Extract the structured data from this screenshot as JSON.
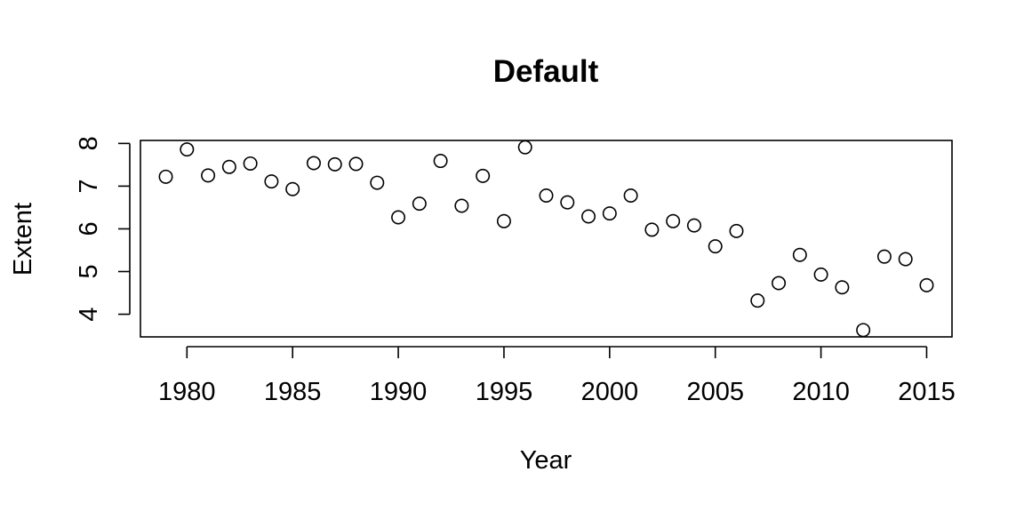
{
  "chart_data": {
    "type": "scatter",
    "title": "Default",
    "xlabel": "Year",
    "ylabel": "Extent",
    "xlim": [
      1977.8,
      2016.2
    ],
    "ylim": [
      3.47,
      8.07
    ],
    "xticks": [
      1980,
      1985,
      1990,
      1995,
      2000,
      2005,
      2010,
      2015
    ],
    "yticks": [
      4,
      5,
      6,
      7,
      8
    ],
    "grid": false,
    "points": [
      {
        "x": 1979,
        "y": 7.22
      },
      {
        "x": 1980,
        "y": 7.86
      },
      {
        "x": 1981,
        "y": 7.25
      },
      {
        "x": 1982,
        "y": 7.45
      },
      {
        "x": 1983,
        "y": 7.53
      },
      {
        "x": 1984,
        "y": 7.11
      },
      {
        "x": 1985,
        "y": 6.93
      },
      {
        "x": 1986,
        "y": 7.54
      },
      {
        "x": 1987,
        "y": 7.51
      },
      {
        "x": 1988,
        "y": 7.52
      },
      {
        "x": 1989,
        "y": 7.08
      },
      {
        "x": 1990,
        "y": 6.27
      },
      {
        "x": 1991,
        "y": 6.59
      },
      {
        "x": 1992,
        "y": 7.59
      },
      {
        "x": 1993,
        "y": 6.54
      },
      {
        "x": 1994,
        "y": 7.24
      },
      {
        "x": 1995,
        "y": 6.18
      },
      {
        "x": 1996,
        "y": 7.91
      },
      {
        "x": 1997,
        "y": 6.78
      },
      {
        "x": 1998,
        "y": 6.62
      },
      {
        "x": 1999,
        "y": 6.29
      },
      {
        "x": 2000,
        "y": 6.36
      },
      {
        "x": 2001,
        "y": 6.78
      },
      {
        "x": 2002,
        "y": 5.98
      },
      {
        "x": 2003,
        "y": 6.18
      },
      {
        "x": 2004,
        "y": 6.08
      },
      {
        "x": 2005,
        "y": 5.59
      },
      {
        "x": 2006,
        "y": 5.95
      },
      {
        "x": 2007,
        "y": 4.32
      },
      {
        "x": 2008,
        "y": 4.73
      },
      {
        "x": 2009,
        "y": 5.39
      },
      {
        "x": 2010,
        "y": 4.93
      },
      {
        "x": 2011,
        "y": 4.63
      },
      {
        "x": 2012,
        "y": 3.63
      },
      {
        "x": 2013,
        "y": 5.35
      },
      {
        "x": 2014,
        "y": 5.29
      },
      {
        "x": 2015,
        "y": 4.68
      }
    ]
  }
}
